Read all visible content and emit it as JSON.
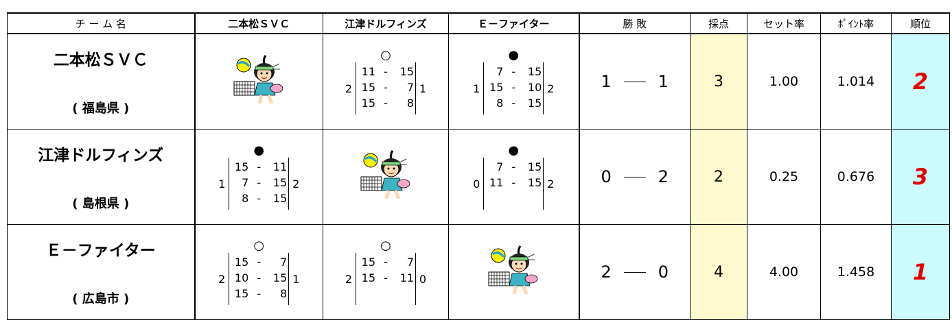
{
  "header": {
    "columns": [
      "チ ー ム 名",
      "二本松ＳＶＣ",
      "江津ドルフィンズ",
      "Ｅ－ファイター",
      "勝 敗",
      "採点",
      "セット率",
      "ﾎﾟｲﾝﾄ率",
      "順位"
    ]
  },
  "rows": [
    {
      "team": "二本松ＳＶＣ",
      "pref": "( 福島県 )",
      "matches": [
        null,
        {
          "mark": "○",
          "sets_for": "2",
          "sets_against": "1",
          "games": [
            [
              "11",
              "15"
            ],
            [
              "15",
              "7"
            ],
            [
              "15",
              "8"
            ]
          ]
        },
        {
          "mark": "●",
          "sets_for": "1",
          "sets_against": "2",
          "games": [
            [
              "7",
              "15"
            ],
            [
              "15",
              "10"
            ],
            [
              "8",
              "15"
            ]
          ]
        }
      ],
      "wins": "1",
      "losses": "1",
      "points": "3",
      "set_rate": "1.00",
      "point_rate": "1.014",
      "rank": "2"
    },
    {
      "team": "江津ドルフィンズ",
      "pref": "( 島根県 )",
      "matches": [
        {
          "mark": "●",
          "sets_for": "1",
          "sets_against": "2",
          "games": [
            [
              "15",
              "11"
            ],
            [
              "7",
              "15"
            ],
            [
              "8",
              "15"
            ]
          ]
        },
        null,
        {
          "mark": "●",
          "sets_for": "0",
          "sets_against": "2",
          "games": [
            [
              "7",
              "15"
            ],
            [
              "11",
              "15"
            ]
          ]
        }
      ],
      "wins": "0",
      "losses": "2",
      "points": "2",
      "set_rate": "0.25",
      "point_rate": "0.676",
      "rank": "3"
    },
    {
      "team": "Ｅ－ファイター",
      "pref": "( 広島市 )",
      "matches": [
        {
          "mark": "○",
          "sets_for": "2",
          "sets_against": "1",
          "games": [
            [
              "15",
              "7"
            ],
            [
              "10",
              "15"
            ],
            [
              "15",
              "8"
            ]
          ]
        },
        {
          "mark": "○",
          "sets_for": "2",
          "sets_against": "0",
          "games": [
            [
              "15",
              "7"
            ],
            [
              "15",
              "11"
            ]
          ]
        },
        null
      ],
      "wins": "2",
      "losses": "0",
      "points": "4",
      "set_rate": "4.00",
      "point_rate": "1.458",
      "rank": "1"
    }
  ]
}
